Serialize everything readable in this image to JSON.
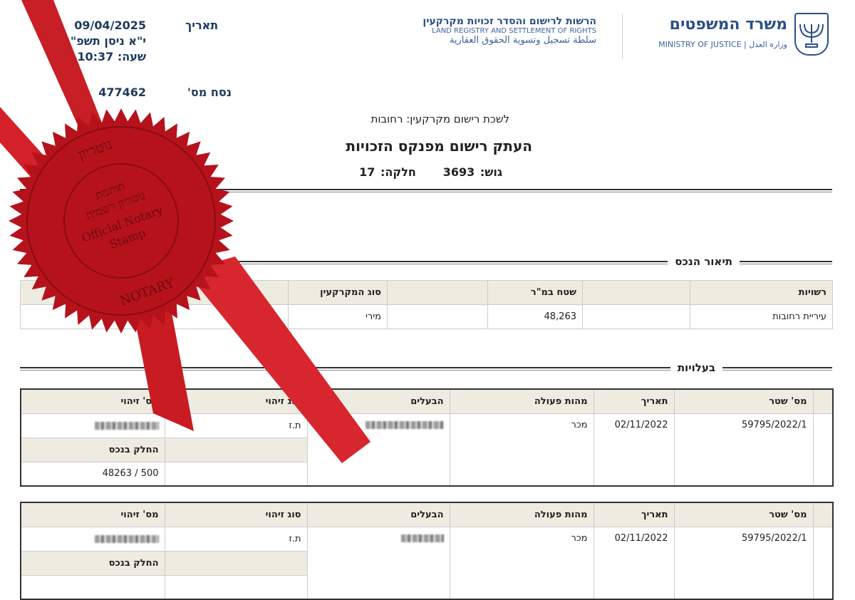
{
  "header": {
    "ministry_he": "משרד המשפטים",
    "ministry_en": "MINISTRY OF JUSTICE",
    "ministry_ar": "وزارة العدل",
    "authority_he": "הרשות לרישום והסדר זכויות מקרקעין",
    "authority_en": "LAND REGISTRY AND SETTLEMENT OF RIGHTS",
    "authority_ar": "سلطة تسجيل وتسوية الحقوق العقارية",
    "date_label": "תאריך",
    "date": "09/04/2025",
    "hebrew_date": "י\"א ניסן תשפ\"ה",
    "time": "שעה: 10:37",
    "version_label": "נסח מס'",
    "version": "477462"
  },
  "title": {
    "office": "לשכת רישום מקרקעין: רחובות",
    "main": "העתק רישום מפנקס הזכויות",
    "gush_label": "גוש:",
    "gush": "3693",
    "helka_label": "חלקה:",
    "helka": "17"
  },
  "property": {
    "section": "תיאור הנכס",
    "headers": [
      "רשויות",
      "",
      "שטח במ\"ר",
      "",
      "סוג המקרקעין",
      ""
    ],
    "values": [
      "עיריית רחובות",
      "",
      "48,263",
      "",
      "מירי",
      ""
    ]
  },
  "ownership": {
    "section": "בעלויות",
    "headers": [
      "",
      "מס' שטר",
      "תאריך",
      "מהות פעולה",
      "הבעלים",
      "סוג זיהוי",
      "מס' זיהוי"
    ],
    "share_label": "החלק בנכס",
    "rows": [
      {
        "deed": "59795/2022/1",
        "date": "02/11/2022",
        "action": "מכר",
        "id_type": "ת.ז",
        "share": "500 / 48263"
      },
      {
        "deed": "59795/2022/1",
        "date": "02/11/2022",
        "action": "מכר",
        "id_type": "ת.ז",
        "share": ""
      }
    ]
  },
  "stamp": {
    "text_top": "נוטריון",
    "text_center_1": "חותמת",
    "text_center_2": "נוטריון רשמית",
    "text_center_3": "Official Notary",
    "text_center_4": "Stamp",
    "text_bottom": "NOTARY",
    "color": "#b5121b",
    "ribbon_color": "#d42028"
  }
}
